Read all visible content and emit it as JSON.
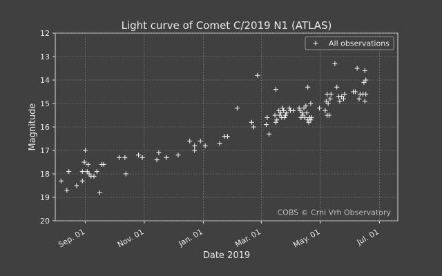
{
  "chart_data": {
    "type": "scatter",
    "title": "Light curve of Comet C/2019 N1 (ATLAS)",
    "xlabel": "Date 2019",
    "ylabel": "Magnitude",
    "y_inverted": true,
    "ylim": [
      20,
      12
    ],
    "xlim": [
      "2019-08-01",
      "2020-07-20"
    ],
    "y_ticks": [
      12,
      13,
      14,
      15,
      16,
      17,
      18,
      19,
      20
    ],
    "x_ticks": [
      {
        "date": "2019-09-01",
        "label": "Sep. 01"
      },
      {
        "date": "2019-11-01",
        "label": "Nov. 01"
      },
      {
        "date": "2020-01-01",
        "label": "Jan. 01"
      },
      {
        "date": "2020-03-01",
        "label": "Mar. 01"
      },
      {
        "date": "2020-05-01",
        "label": "May. 01"
      },
      {
        "date": "2020-07-01",
        "label": "Jul. 01"
      }
    ],
    "grid": true,
    "legend_position": "top-right",
    "annotation": "COBS © Crni Vrh Observatory",
    "series": [
      {
        "name": "All observations",
        "marker": "+",
        "color": "#ffffff",
        "points": [
          [
            "2019-08-07",
            18.3
          ],
          [
            "2019-08-13",
            18.7
          ],
          [
            "2019-08-15",
            17.9
          ],
          [
            "2019-08-23",
            18.5
          ],
          [
            "2019-08-29",
            17.9
          ],
          [
            "2019-08-29",
            18.3
          ],
          [
            "2019-08-31",
            17.5
          ],
          [
            "2019-09-01",
            17.0
          ],
          [
            "2019-09-03",
            17.9
          ],
          [
            "2019-09-04",
            17.6
          ],
          [
            "2019-09-05",
            18.0
          ],
          [
            "2019-09-07",
            18.1
          ],
          [
            "2019-09-10",
            18.1
          ],
          [
            "2019-09-13",
            17.9
          ],
          [
            "2019-09-16",
            18.8
          ],
          [
            "2019-09-18",
            17.6
          ],
          [
            "2019-09-20",
            17.6
          ],
          [
            "2019-10-06",
            17.3
          ],
          [
            "2019-10-12",
            17.3
          ],
          [
            "2019-10-13",
            18.0
          ],
          [
            "2019-10-26",
            17.2
          ],
          [
            "2019-10-30",
            17.3
          ],
          [
            "2019-11-14",
            17.4
          ],
          [
            "2019-11-16",
            17.1
          ],
          [
            "2019-11-24",
            17.3
          ],
          [
            "2019-12-06",
            17.2
          ],
          [
            "2019-12-18",
            16.6
          ],
          [
            "2019-12-23",
            16.8
          ],
          [
            "2019-12-23",
            17.0
          ],
          [
            "2019-12-29",
            16.6
          ],
          [
            "2020-01-03",
            16.8
          ],
          [
            "2020-01-18",
            16.7
          ],
          [
            "2020-01-23",
            16.4
          ],
          [
            "2020-01-26",
            16.4
          ],
          [
            "2020-02-05",
            15.2
          ],
          [
            "2020-02-20",
            15.8
          ],
          [
            "2020-02-22",
            16.0
          ],
          [
            "2020-02-26",
            13.8
          ],
          [
            "2020-03-06",
            15.9
          ],
          [
            "2020-03-07",
            15.6
          ],
          [
            "2020-03-09",
            16.3
          ],
          [
            "2020-03-15",
            15.5
          ],
          [
            "2020-03-16",
            15.8
          ],
          [
            "2020-03-16",
            14.4
          ],
          [
            "2020-03-17",
            15.7
          ],
          [
            "2020-03-19",
            15.3
          ],
          [
            "2020-03-20",
            15.5
          ],
          [
            "2020-03-21",
            15.4
          ],
          [
            "2020-03-22",
            15.6
          ],
          [
            "2020-03-23",
            15.2
          ],
          [
            "2020-03-24",
            15.3
          ],
          [
            "2020-03-25",
            15.6
          ],
          [
            "2020-03-26",
            15.5
          ],
          [
            "2020-03-27",
            15.4
          ],
          [
            "2020-03-30",
            15.2
          ],
          [
            "2020-03-31",
            15.3
          ],
          [
            "2020-04-03",
            15.3
          ],
          [
            "2020-04-09",
            15.2
          ],
          [
            "2020-04-10",
            15.3
          ],
          [
            "2020-04-11",
            15.6
          ],
          [
            "2020-04-12",
            15.4
          ],
          [
            "2020-04-13",
            15.5
          ],
          [
            "2020-04-14",
            15.2
          ],
          [
            "2020-04-15",
            15.6
          ],
          [
            "2020-04-16",
            15.1
          ],
          [
            "2020-04-17",
            15.4
          ],
          [
            "2020-04-18",
            15.7
          ],
          [
            "2020-04-18",
            14.3
          ],
          [
            "2020-04-19",
            15.8
          ],
          [
            "2020-04-20",
            15.6
          ],
          [
            "2020-04-21",
            15.7
          ],
          [
            "2020-04-21",
            15.0
          ],
          [
            "2020-04-22",
            15.6
          ],
          [
            "2020-04-30",
            15.2
          ],
          [
            "2020-05-06",
            15.3
          ],
          [
            "2020-05-07",
            14.9
          ],
          [
            "2020-05-08",
            15.5
          ],
          [
            "2020-05-08",
            14.6
          ],
          [
            "2020-05-09",
            15.0
          ],
          [
            "2020-05-10",
            15.5
          ],
          [
            "2020-05-11",
            14.8
          ],
          [
            "2020-05-12",
            14.6
          ],
          [
            "2020-05-16",
            13.3
          ],
          [
            "2020-05-18",
            14.3
          ],
          [
            "2020-05-20",
            14.7
          ],
          [
            "2020-05-21",
            14.9
          ],
          [
            "2020-05-23",
            14.7
          ],
          [
            "2020-05-25",
            14.8
          ],
          [
            "2020-05-26",
            14.6
          ],
          [
            "2020-06-04",
            14.5
          ],
          [
            "2020-06-06",
            14.5
          ],
          [
            "2020-06-08",
            13.5
          ],
          [
            "2020-06-10",
            14.8
          ],
          [
            "2020-06-11",
            14.6
          ],
          [
            "2020-06-14",
            14.6
          ],
          [
            "2020-06-15",
            14.1
          ],
          [
            "2020-06-16",
            14.9
          ],
          [
            "2020-06-16",
            13.6
          ],
          [
            "2020-06-17",
            14.0
          ],
          [
            "2020-06-17",
            14.6
          ]
        ]
      }
    ]
  }
}
